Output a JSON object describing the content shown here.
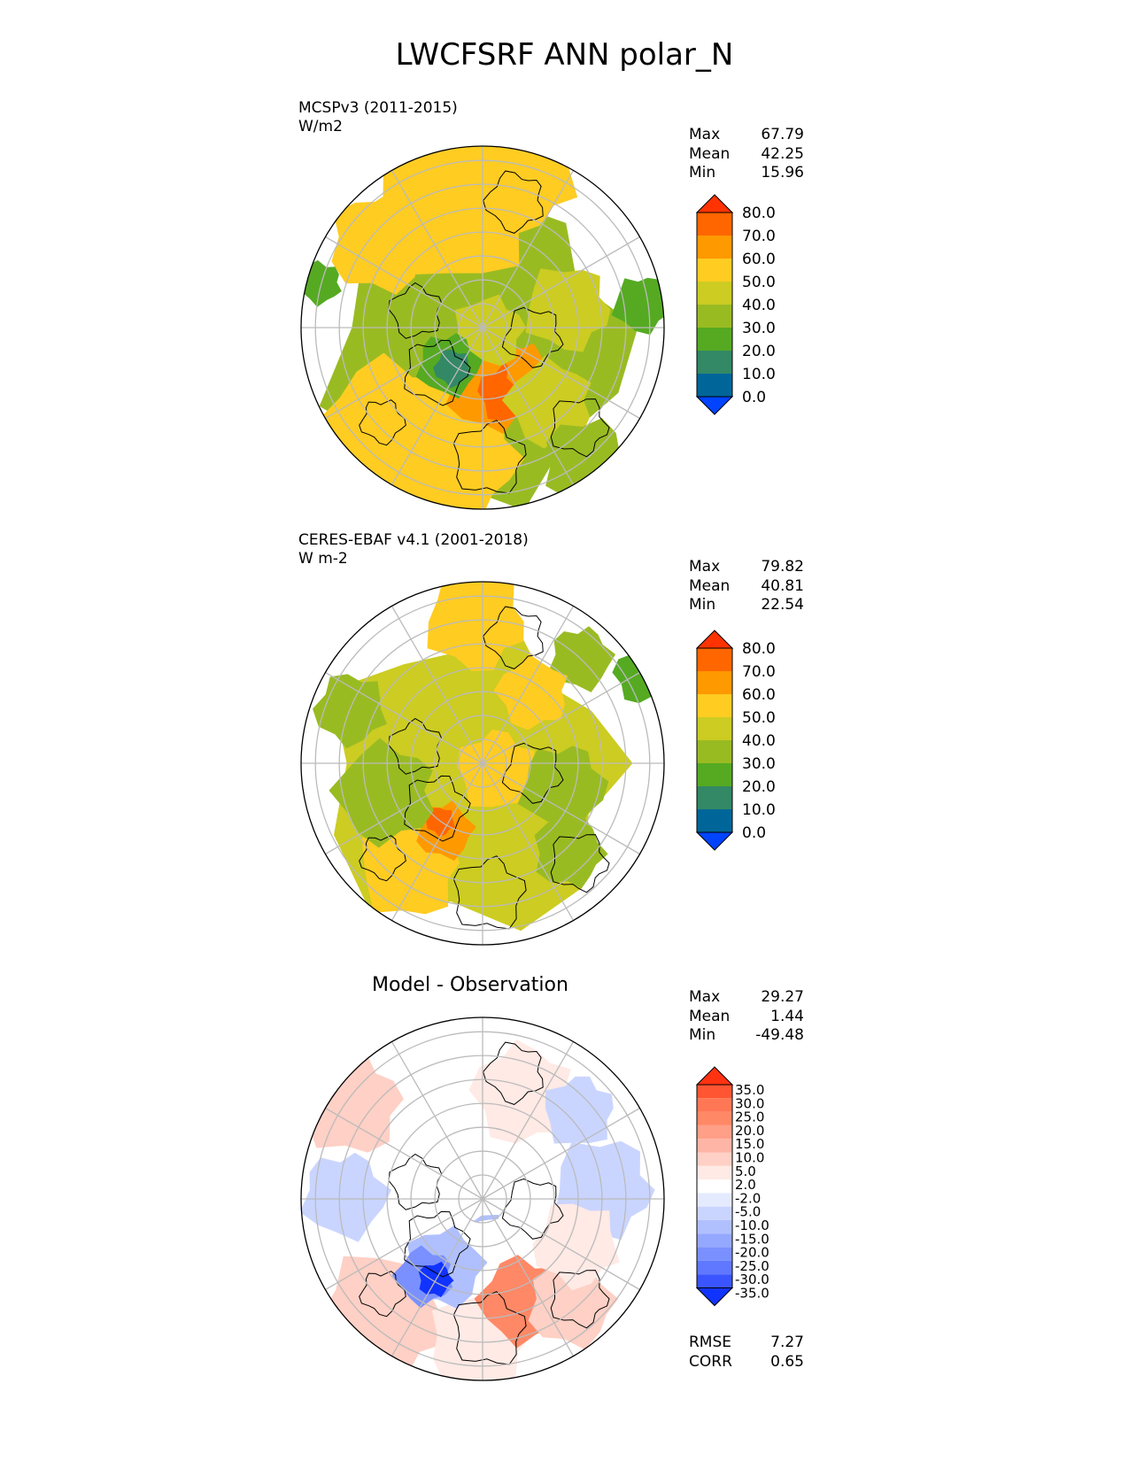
{
  "title": "LWCFSRF ANN polar_N",
  "panels": [
    {
      "label_line1": "MCSPv3 (2011-2015)",
      "label_line2": "W/m2",
      "stats": [
        {
          "name": "Max",
          "value": "67.79"
        },
        {
          "name": "Mean",
          "value": "42.25"
        },
        {
          "name": "Min",
          "value": "15.96"
        }
      ]
    },
    {
      "label_line1": "CERES-EBAF v4.1 (2001-2018)",
      "label_line2": "W m-2",
      "stats": [
        {
          "name": "Max",
          "value": "79.82"
        },
        {
          "name": "Mean",
          "value": "40.81"
        },
        {
          "name": "Min",
          "value": "22.54"
        }
      ]
    },
    {
      "subtitle": "Model - Observation",
      "stats": [
        {
          "name": "Max",
          "value": "29.27"
        },
        {
          "name": "Mean",
          "value": "1.44"
        },
        {
          "name": "Min",
          "value": "-49.48"
        }
      ],
      "metrics": [
        {
          "name": "RMSE",
          "value": "7.27"
        },
        {
          "name": "CORR",
          "value": "0.65"
        }
      ]
    }
  ],
  "chart_data": [
    {
      "type": "heatmap",
      "projection": "north-polar-stereographic",
      "colorbar": {
        "ticks": [
          "80.0",
          "70.0",
          "60.0",
          "50.0",
          "40.0",
          "30.0",
          "20.0",
          "10.0",
          "0.0"
        ],
        "colors": [
          "#ff3300",
          "#ff6600",
          "#ff9900",
          "#ffcc22",
          "#cccc22",
          "#99bb22",
          "#55aa22",
          "#338866",
          "#006699",
          "#0044ff"
        ]
      }
    },
    {
      "type": "heatmap",
      "projection": "north-polar-stereographic",
      "colorbar": {
        "ticks": [
          "80.0",
          "70.0",
          "60.0",
          "50.0",
          "40.0",
          "30.0",
          "20.0",
          "10.0",
          "0.0"
        ],
        "colors": [
          "#ff3300",
          "#ff6600",
          "#ff9900",
          "#ffcc22",
          "#cccc22",
          "#99bb22",
          "#55aa22",
          "#338866",
          "#006699",
          "#0044ff"
        ]
      }
    },
    {
      "type": "heatmap",
      "projection": "north-polar-stereographic",
      "colorbar": {
        "ticks": [
          "35.0",
          "30.0",
          "25.0",
          "20.0",
          "15.0",
          "10.0",
          "5.0",
          "2.0",
          "-2.0",
          "-5.0",
          "-10.0",
          "-15.0",
          "-20.0",
          "-25.0",
          "-30.0",
          "-35.0"
        ],
        "colors": [
          "#ff3311",
          "#ff5533",
          "#ff7755",
          "#ff8866",
          "#ff9f88",
          "#ffb5a5",
          "#ffd0c5",
          "#ffeae5",
          "#ffffff",
          "#e5ebff",
          "#cad5ff",
          "#b0c0ff",
          "#95a8ff",
          "#7a90ff",
          "#5f78ff",
          "#3a55ff",
          "#1133ff"
        ]
      }
    }
  ]
}
